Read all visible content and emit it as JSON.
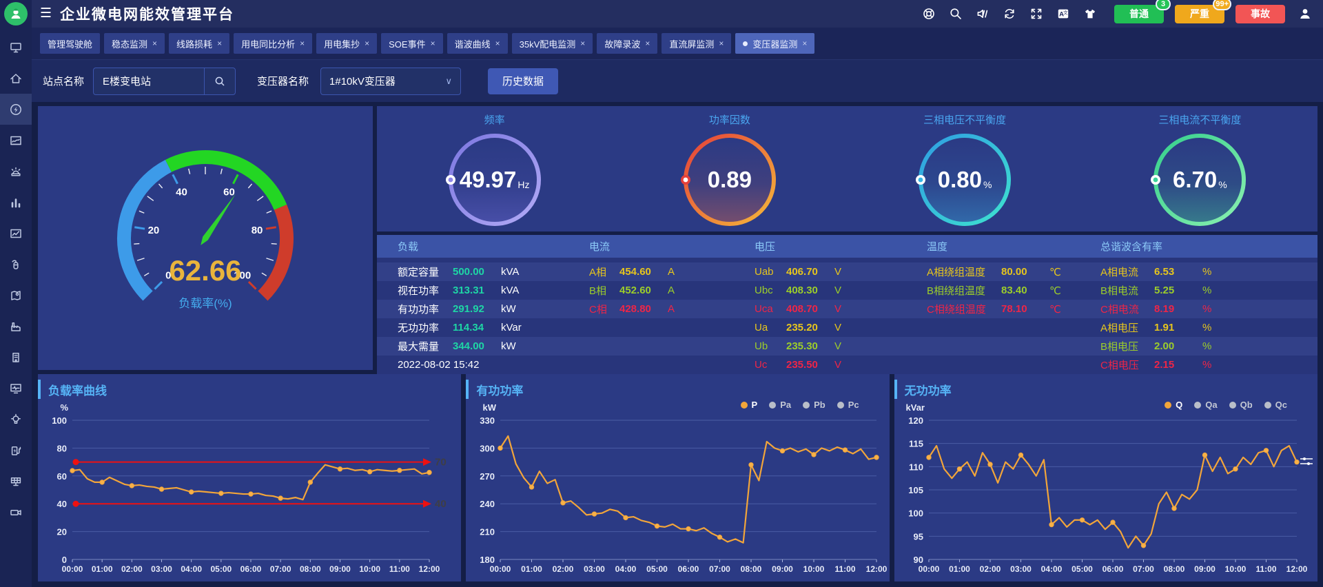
{
  "header": {
    "title": "企业微电网能效管理平台",
    "icon_names": [
      "headset-help",
      "search",
      "sound-muted",
      "refresh",
      "fullscreen",
      "translate",
      "theme-shirt"
    ],
    "alerts": [
      {
        "label": "普通",
        "count": "3",
        "color": "#21bf55",
        "badge_color": "#25c457"
      },
      {
        "label": "严重",
        "count": "99+",
        "color": "#f0a81c",
        "badge_color": "#f2ab20"
      },
      {
        "label": "事故",
        "count": "",
        "color": "#f25555",
        "badge_color": ""
      }
    ]
  },
  "tabs": [
    {
      "label": "管理驾驶舱",
      "closable": false,
      "active": false
    },
    {
      "label": "稳态监测",
      "closable": true,
      "active": false
    },
    {
      "label": "线路损耗",
      "closable": true,
      "active": false
    },
    {
      "label": "用电同比分析",
      "closable": true,
      "active": false
    },
    {
      "label": "用电集抄",
      "closable": true,
      "active": false
    },
    {
      "label": "SOE事件",
      "closable": true,
      "active": false
    },
    {
      "label": "谐波曲线",
      "closable": true,
      "active": false
    },
    {
      "label": "35kV配电监测",
      "closable": true,
      "active": false
    },
    {
      "label": "故障录波",
      "closable": true,
      "active": false
    },
    {
      "label": "直流屏监测",
      "closable": true,
      "active": false
    },
    {
      "label": "变压器监测",
      "closable": true,
      "active": true
    }
  ],
  "filter": {
    "site_label": "站点名称",
    "site_value": "E楼变电站",
    "transformer_label": "变压器名称",
    "transformer_value": "1#10kV变压器",
    "history_button": "历史数据"
  },
  "sidebar": {
    "items": [
      "screen-monitor",
      "home",
      "energy-bolt",
      "report-wave",
      "alarm-siren",
      "bar-chart",
      "trend-chart",
      "fire-extinguisher",
      "map-location",
      "factory",
      "building",
      "screen-pulse",
      "bulb",
      "ev-charger",
      "solar-panel",
      "video-camera"
    ],
    "active_index": 2
  },
  "gauge": {
    "value": "62.66",
    "value_num": 62.66,
    "label": "负载率(%)",
    "min": 0,
    "max": 100,
    "tick_labels": [
      0,
      20,
      40,
      60,
      80,
      100
    ],
    "zones": [
      {
        "to": 0.4,
        "color": "#3d9be9"
      },
      {
        "to": 0.75,
        "color": "#23d623"
      },
      {
        "to": 1.0,
        "color": "#cf3c2b"
      }
    ],
    "needle_color": "#2fd32f",
    "value_color": "#e9b43c",
    "label_color": "#45aef0"
  },
  "rings": [
    {
      "title": "频率",
      "value": "49.97",
      "unit": "Hz",
      "c1": "#7c77e0",
      "c2": "#b2aaf6",
      "fill": "#6f6ad8",
      "dot_outer": "#ffffff",
      "dot_inner": "#8d86e8"
    },
    {
      "title": "功率因数",
      "value": "0.89",
      "unit": "",
      "c1": "#e4403a",
      "c2": "#f5b83a",
      "fill": "#d86850",
      "dot_outer": "#e4403a",
      "dot_inner": "#ffffff"
    },
    {
      "title": "三相电压不平衡度",
      "value": "0.80",
      "unit": "%",
      "c1": "#2f9de2",
      "c2": "#3ee3cf",
      "fill": "#3aa9dc",
      "dot_outer": "#ffffff",
      "dot_inner": "#35b5e5"
    },
    {
      "title": "三相电流不平衡度",
      "value": "6.70",
      "unit": "%",
      "c1": "#35cf8d",
      "c2": "#8af0b0",
      "fill": "#46cf96",
      "dot_outer": "#ffffff",
      "dot_inner": "#3bd39a"
    }
  ],
  "table": {
    "headers": [
      "负载",
      "电流",
      "电压",
      "温度",
      "总谐波含有率"
    ],
    "timestamp": "2022-08-02 15:42",
    "phase_colors": {
      "a": "#e6c51d",
      "b": "#9ccd2a",
      "c": "#ee2547",
      "teal": "#1ed6a5",
      "white": "#ffffff"
    },
    "columns": [
      {
        "rows": [
          {
            "label": "额定容量",
            "value": "500.00",
            "unit": "kVA",
            "color": "teal"
          },
          {
            "label": "视在功率",
            "value": "313.31",
            "unit": "kVA",
            "color": "teal"
          },
          {
            "label": "有功功率",
            "value": "291.92",
            "unit": "kW",
            "color": "teal"
          },
          {
            "label": "无功功率",
            "value": "114.34",
            "unit": "kVar",
            "color": "teal"
          },
          {
            "label": "最大需量",
            "value": "344.00",
            "unit": "kW",
            "color": "teal"
          },
          {
            "label": "2022-08-02 15:42",
            "value": "",
            "unit": "",
            "color": "white",
            "is_timestamp": true
          }
        ]
      },
      {
        "rows": [
          {
            "label": "A相",
            "value": "454.60",
            "unit": "A",
            "color": "a"
          },
          {
            "label": "B相",
            "value": "452.60",
            "unit": "A",
            "color": "b"
          },
          {
            "label": "C相",
            "value": "428.80",
            "unit": "A",
            "color": "c"
          }
        ]
      },
      {
        "rows": [
          {
            "label": "Uab",
            "value": "406.70",
            "unit": "V",
            "color": "a"
          },
          {
            "label": "Ubc",
            "value": "408.30",
            "unit": "V",
            "color": "b"
          },
          {
            "label": "Uca",
            "value": "408.70",
            "unit": "V",
            "color": "c"
          },
          {
            "label": "Ua",
            "value": "235.20",
            "unit": "V",
            "color": "a"
          },
          {
            "label": "Ub",
            "value": "235.30",
            "unit": "V",
            "color": "b"
          },
          {
            "label": "Uc",
            "value": "235.50",
            "unit": "V",
            "color": "c"
          }
        ]
      },
      {
        "rows": [
          {
            "label": "A相绕组温度",
            "value": "80.00",
            "unit": "℃",
            "color": "a"
          },
          {
            "label": "B相绕组温度",
            "value": "83.40",
            "unit": "℃",
            "color": "b"
          },
          {
            "label": "C相绕组温度",
            "value": "78.10",
            "unit": "℃",
            "color": "c"
          }
        ]
      },
      {
        "rows": [
          {
            "label": "A相电流",
            "value": "6.53",
            "unit": "%",
            "color": "a"
          },
          {
            "label": "B相电流",
            "value": "5.25",
            "unit": "%",
            "color": "b"
          },
          {
            "label": "C相电流",
            "value": "8.19",
            "unit": "%",
            "color": "c"
          },
          {
            "label": "A相电压",
            "value": "1.91",
            "unit": "%",
            "color": "a"
          },
          {
            "label": "B相电压",
            "value": "2.00",
            "unit": "%",
            "color": "b"
          },
          {
            "label": "C相电压",
            "value": "2.15",
            "unit": "%",
            "color": "c"
          }
        ]
      }
    ]
  },
  "chart_data": [
    {
      "type": "line",
      "title": "负载率曲线",
      "unit": "%",
      "ylim": [
        0,
        100
      ],
      "yticks": [
        0,
        20,
        40,
        60,
        80,
        100
      ],
      "x": [
        "00:00",
        "01:00",
        "02:00",
        "03:00",
        "04:00",
        "05:00",
        "06:00",
        "07:00",
        "08:00",
        "09:00",
        "10:00",
        "11:00",
        "12:00"
      ],
      "grid": true,
      "legend": [],
      "thresholds": [
        {
          "value": 70,
          "label": "70",
          "color": "#ee1111"
        },
        {
          "value": 40,
          "label": "40",
          "color": "#ee1111"
        }
      ],
      "series": [
        {
          "name": "负载率",
          "color": "#f2a53a",
          "values": [
            63.8,
            64.5,
            58,
            55.5,
            55.5,
            59,
            56.5,
            54,
            53,
            53.5,
            52.5,
            52,
            50.5,
            51,
            51.5,
            50,
            48.5,
            49,
            48.5,
            48,
            47.5,
            48,
            47.5,
            47,
            47,
            47.5,
            46,
            45.5,
            44,
            43.5,
            44.5,
            43,
            55.5,
            62,
            68,
            66.5,
            65,
            65.5,
            64,
            64.5,
            63,
            64.5,
            64,
            63.5,
            64,
            64.5,
            65,
            61.5,
            62.5
          ]
        }
      ]
    },
    {
      "type": "line",
      "title": "有功功率",
      "unit": "kW",
      "ylim": [
        180,
        330
      ],
      "yticks": [
        180,
        210,
        240,
        270,
        300,
        330
      ],
      "x": [
        "00:00",
        "01:00",
        "02:00",
        "03:00",
        "04:00",
        "05:00",
        "06:00",
        "07:00",
        "08:00",
        "09:00",
        "10:00",
        "11:00",
        "12:00"
      ],
      "grid": true,
      "legend": [
        {
          "label": "P",
          "active": true
        },
        {
          "label": "Pa",
          "active": false
        },
        {
          "label": "Pb",
          "active": false
        },
        {
          "label": "Pc",
          "active": false
        }
      ],
      "thresholds": [],
      "series": [
        {
          "name": "P",
          "color": "#f2a53a",
          "values": [
            300,
            313,
            283,
            268,
            258,
            275,
            262,
            266,
            241,
            243,
            236,
            228,
            229,
            230,
            234,
            232,
            225,
            226,
            222,
            220,
            216,
            215,
            218,
            213,
            213,
            211,
            214,
            208,
            204,
            199,
            202,
            198,
            282,
            265,
            307,
            300,
            297,
            300,
            296,
            299,
            293,
            300,
            297,
            301,
            298,
            294,
            299,
            288,
            290
          ]
        }
      ]
    },
    {
      "type": "line",
      "title": "无功功率",
      "unit": "kVar",
      "ylim": [
        90,
        120
      ],
      "yticks": [
        90,
        95,
        100,
        105,
        110,
        115,
        120
      ],
      "x": [
        "00:00",
        "01:00",
        "02:00",
        "03:00",
        "04:00",
        "05:00",
        "06:00",
        "07:00",
        "08:00",
        "09:00",
        "10:00",
        "11:00",
        "12:00"
      ],
      "grid": true,
      "legend": [
        {
          "label": "Q",
          "active": true
        },
        {
          "label": "Qa",
          "active": false
        },
        {
          "label": "Qb",
          "active": false
        },
        {
          "label": "Qc",
          "active": false
        }
      ],
      "thresholds": [],
      "has_toolbox": true,
      "series": [
        {
          "name": "Q",
          "color": "#f2a53a",
          "values": [
            112,
            114.5,
            109.5,
            107.5,
            109.5,
            111,
            108,
            113,
            110.5,
            106.5,
            111,
            109.5,
            112.5,
            110.5,
            108,
            111.5,
            97.5,
            99,
            97,
            98.5,
            98.5,
            97.5,
            98.5,
            96.5,
            98,
            96,
            92.5,
            95,
            93,
            95.5,
            102,
            104.5,
            101,
            104,
            103,
            105,
            112.5,
            109,
            112,
            108.5,
            109.5,
            112,
            110.5,
            113,
            113.5,
            110,
            113.5,
            114.5,
            111
          ]
        }
      ]
    }
  ],
  "legend_colors": {
    "active": "#f2a53a",
    "inactive": "#b9bec9",
    "active_text": "#ffffff",
    "inactive_text": "#c3c8d4"
  }
}
